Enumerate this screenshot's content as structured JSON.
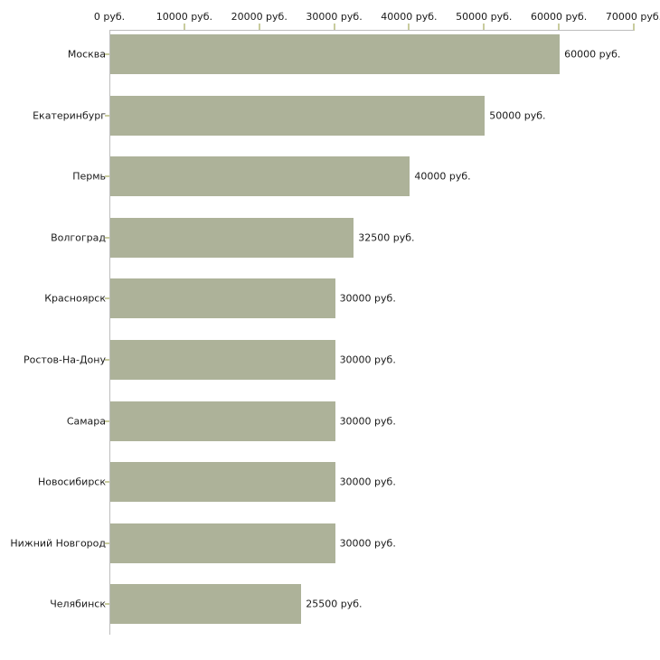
{
  "chart_data": {
    "type": "bar",
    "orientation": "horizontal",
    "title": "",
    "categories": [
      "Москва",
      "Екатеринбург",
      "Пермь",
      "Волгоград",
      "Красноярск",
      "Ростов-На-Дону",
      "Самара",
      "Новосибирск",
      "Нижний Новгород",
      "Челябинск"
    ],
    "values": [
      60000,
      50000,
      40000,
      32500,
      30000,
      30000,
      30000,
      30000,
      30000,
      25500
    ],
    "value_labels": [
      "60000 руб.",
      "50000 руб.",
      "40000 руб.",
      "32500 руб.",
      "30000 руб.",
      "30000 руб.",
      "30000 руб.",
      "30000 руб.",
      "30000 руб.",
      "25500 руб."
    ],
    "x_ticks": [
      "0 руб.",
      "10000 руб.",
      "20000 руб.",
      "30000 руб.",
      "40000 руб.",
      "50000 руб.",
      "60000 руб.",
      "70000 руб."
    ],
    "x_tick_values": [
      0,
      10000,
      20000,
      30000,
      40000,
      50000,
      60000,
      70000
    ],
    "xlim": [
      0,
      70000
    ],
    "unit": "руб.",
    "xlabel": "",
    "ylabel": "",
    "grid": false,
    "legend": false,
    "colors": {
      "bar_fill": "#adb299",
      "axis_line": "#bdbdbd",
      "tick_mark": "#c9cc9e",
      "text": "#1a1a1a",
      "background": "#ffffff"
    }
  }
}
